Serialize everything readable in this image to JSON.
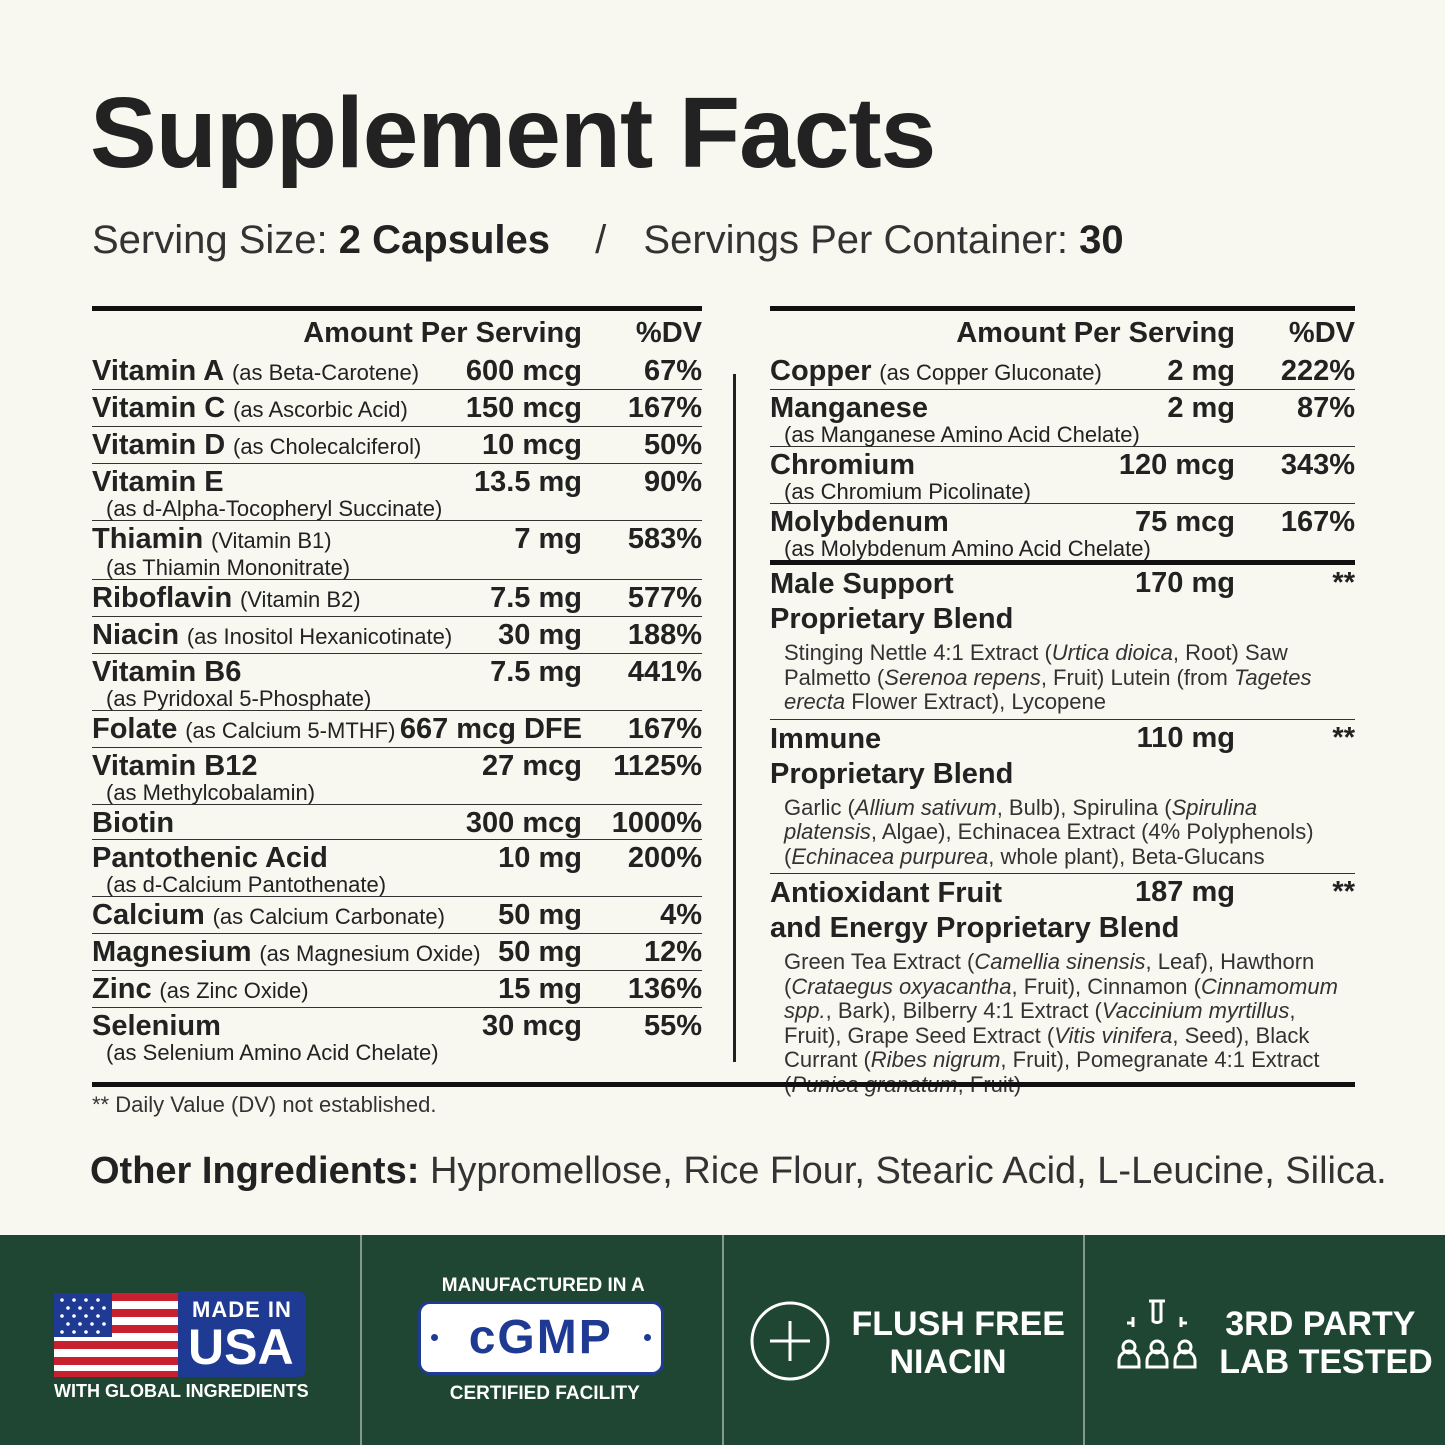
{
  "header": {
    "title": "Supplement Facts",
    "serving_size_label": "Serving Size:",
    "serving_size_value": "2 Capsules",
    "separator": "/",
    "servings_per_container_label": "Servings Per Container:",
    "servings_per_container_value": "30"
  },
  "table": {
    "col_amount": "Amount Per Serving",
    "col_dv": "%DV",
    "left_rows": [
      {
        "name": "Vitamin A",
        "source": "(as Beta-Carotene)",
        "sub": "",
        "amount": "600 mcg",
        "dv": "67%"
      },
      {
        "name": "Vitamin C",
        "source": "(as Ascorbic Acid)",
        "sub": "",
        "amount": "150 mcg",
        "dv": "167%"
      },
      {
        "name": "Vitamin D",
        "source": "(as Cholecalciferol)",
        "sub": "",
        "amount": "10 mcg",
        "dv": "50%"
      },
      {
        "name": "Vitamin E",
        "source": "",
        "sub": "(as d-Alpha-Tocopheryl Succinate)",
        "amount": "13.5 mg",
        "dv": "90%"
      },
      {
        "name": "Thiamin",
        "source": "(Vitamin B1)",
        "sub": "(as Thiamin Mononitrate)",
        "amount": "7 mg",
        "dv": "583%"
      },
      {
        "name": "Riboflavin",
        "source": "(Vitamin B2)",
        "sub": "",
        "amount": "7.5 mg",
        "dv": "577%"
      },
      {
        "name": "Niacin",
        "source": "(as Inositol Hexanicotinate)",
        "sub": "",
        "amount": "30 mg",
        "dv": "188%"
      },
      {
        "name": "Vitamin B6",
        "source": "",
        "sub": "(as Pyridoxal 5-Phosphate)",
        "amount": "7.5 mg",
        "dv": "441%"
      },
      {
        "name": "Folate",
        "source": "(as Calcium 5-MTHF)",
        "sub": "",
        "amount": "667 mcg DFE",
        "dv": "167%"
      },
      {
        "name": "Vitamin B12",
        "source": "",
        "sub": "(as Methylcobalamin)",
        "amount": "27 mcg",
        "dv": "1125%"
      },
      {
        "name": "Biotin",
        "source": "",
        "sub": "",
        "amount": "300 mcg",
        "dv": "1000%"
      },
      {
        "name": "Pantothenic Acid",
        "source": "",
        "sub": "(as d-Calcium Pantothenate)",
        "amount": "10 mg",
        "dv": "200%"
      },
      {
        "name": "Calcium",
        "source": "(as Calcium Carbonate)",
        "sub": "",
        "amount": "50 mg",
        "dv": "4%"
      },
      {
        "name": "Magnesium",
        "source": "(as Magnesium Oxide)",
        "sub": "",
        "amount": "50 mg",
        "dv": "12%"
      },
      {
        "name": "Zinc",
        "source": "(as Zinc Oxide)",
        "sub": "",
        "amount": "15 mg",
        "dv": "136%"
      },
      {
        "name": "Selenium",
        "source": "",
        "sub": "(as Selenium Amino Acid Chelate)",
        "amount": "30 mcg",
        "dv": "55%"
      }
    ],
    "right_rows": [
      {
        "name": "Copper",
        "source": "(as Copper Gluconate)",
        "sub": "",
        "amount": "2 mg",
        "dv": "222%"
      },
      {
        "name": "Manganese",
        "source": "",
        "sub": "(as Manganese Amino Acid Chelate)",
        "amount": "2 mg",
        "dv": "87%"
      },
      {
        "name": "Chromium",
        "source": "",
        "sub": "(as Chromium Picolinate)",
        "amount": "120 mcg",
        "dv": "343%"
      },
      {
        "name": "Molybdenum",
        "source": "",
        "sub": "(as Molybdenum Amino Acid Chelate)",
        "amount": "75 mcg",
        "dv": "167%"
      }
    ],
    "blends": [
      {
        "name1": "Male Support",
        "name2": "Proprietary Blend",
        "amount": "170 mg",
        "dv": "**",
        "desc_html": "Stinging Nettle 4:1 Extract (<i>Urtica dioica</i>, Root) Saw Palmetto (<i>Serenoa repens</i>, Fruit) Lutein (from <i>Tagetes erecta</i> Flower Extract), Lycopene"
      },
      {
        "name1": "Immune",
        "name2": "Proprietary Blend",
        "amount": "110 mg",
        "dv": "**",
        "desc_html": "Garlic (<i>Allium sativum</i>, Bulb), Spirulina (<i>Spirulina platensis</i>, Algae), Echinacea Extract (4% Polyphenols) (<i>Echinacea purpurea</i>, whole plant), Beta-Glucans"
      },
      {
        "name1": "Antioxidant Fruit",
        "name2": "and Energy Proprietary Blend",
        "amount": "187 mg",
        "dv": "**",
        "desc_html": "Green Tea Extract (<i>Camellia sinensis</i>, Leaf), Hawthorn (<i>Crataegus oxyacantha</i>, Fruit), Cinnamon (<i>Cinnamomum spp.</i>, Bark), Bilberry 4:1 Extract (<i>Vaccinium myrtillus</i>, Fruit), Grape Seed Extract (<i>Vitis vinifera</i>, Seed), Black Currant (<i>Ribes nigrum</i>, Fruit), Pomegranate 4:1 Extract (<i>Punica granatum</i>, Fruit)"
      }
    ],
    "footnote": "** Daily Value (DV) not established."
  },
  "other_ingredients": {
    "label": "Other Ingredients:",
    "value": "Hypromellose, Rice Flour, Stearic Acid, L-Leucine, Silica."
  },
  "badges": {
    "colors": {
      "band": "#1f4632",
      "flag_red": "#c8202f",
      "flag_blue": "#1f3a93"
    },
    "usa": {
      "top": "MADE IN",
      "big": "USA",
      "bottom": "WITH GLOBAL INGREDIENTS"
    },
    "cgmp": {
      "top": "MANUFACTURED IN A",
      "mark": "cGMP",
      "bottom": "CERTIFIED FACILITY"
    },
    "flush": {
      "line1": "FLUSH FREE",
      "line2": "NIACIN"
    },
    "lab": {
      "line1": "3RD PARTY",
      "line2": "LAB TESTED"
    }
  }
}
